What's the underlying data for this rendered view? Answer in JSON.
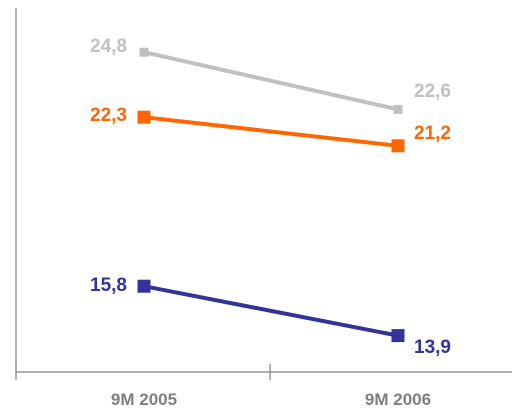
{
  "chart_data": {
    "type": "line",
    "categories": [
      "9M 2005",
      "9M 2006"
    ],
    "series": [
      {
        "values": [
          24.8,
          22.6
        ],
        "labels": [
          "24,8",
          "22,6"
        ],
        "color": "#c0c0c0",
        "marker_size": "small"
      },
      {
        "values": [
          22.3,
          21.2
        ],
        "labels": [
          "22,3",
          "21,2"
        ],
        "color": "#ff6600",
        "marker_size": "large"
      },
      {
        "values": [
          15.8,
          13.9
        ],
        "labels": [
          "15,8",
          "13,9"
        ],
        "color": "#333399",
        "marker_size": "large"
      }
    ],
    "title": "",
    "xlabel": "",
    "ylabel": "",
    "ylim": [
      12.5,
      26.5
    ],
    "grid": false,
    "legend": "none",
    "y_axis_labels": false
  }
}
